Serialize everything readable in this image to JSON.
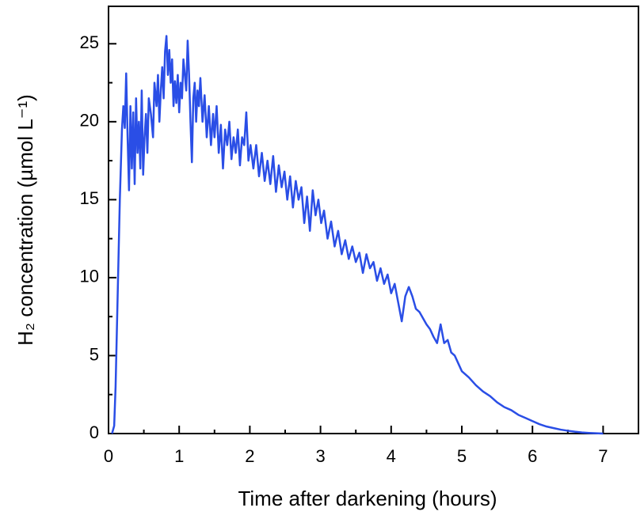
{
  "chart_data": {
    "type": "line",
    "xlabel": "Time after darkening (hours)",
    "ylabel": "H₂ concentration (µmol L⁻¹)",
    "xlim": [
      0,
      7.5
    ],
    "ylim": [
      0,
      27.4
    ],
    "xticks": [
      0,
      1,
      2,
      3,
      4,
      5,
      6,
      7
    ],
    "yticks": [
      0,
      5,
      10,
      15,
      20,
      25
    ],
    "x_minor_ticks": [
      0.5,
      1.5,
      2.5,
      3.5,
      4.5,
      5.5,
      6.5
    ],
    "y_minor_ticks": [
      2.5,
      7.5,
      12.5,
      17.5,
      22.5
    ],
    "grid": false,
    "x": [
      0.05,
      0.08,
      0.1,
      0.13,
      0.16,
      0.19,
      0.21,
      0.23,
      0.25,
      0.27,
      0.29,
      0.31,
      0.33,
      0.35,
      0.37,
      0.39,
      0.41,
      0.43,
      0.45,
      0.47,
      0.49,
      0.51,
      0.53,
      0.55,
      0.57,
      0.6,
      0.63,
      0.65,
      0.68,
      0.7,
      0.72,
      0.74,
      0.76,
      0.78,
      0.8,
      0.82,
      0.84,
      0.86,
      0.88,
      0.9,
      0.92,
      0.94,
      0.96,
      0.98,
      1.0,
      1.02,
      1.04,
      1.06,
      1.08,
      1.1,
      1.12,
      1.14,
      1.16,
      1.18,
      1.2,
      1.22,
      1.24,
      1.26,
      1.28,
      1.3,
      1.33,
      1.36,
      1.39,
      1.42,
      1.45,
      1.48,
      1.5,
      1.53,
      1.56,
      1.59,
      1.62,
      1.65,
      1.68,
      1.71,
      1.74,
      1.77,
      1.8,
      1.83,
      1.86,
      1.89,
      1.92,
      1.95,
      1.98,
      2.01,
      2.05,
      2.09,
      2.13,
      2.17,
      2.21,
      2.25,
      2.29,
      2.33,
      2.37,
      2.41,
      2.45,
      2.49,
      2.53,
      2.57,
      2.61,
      2.65,
      2.69,
      2.73,
      2.77,
      2.81,
      2.85,
      2.89,
      2.93,
      2.97,
      3.01,
      3.05,
      3.1,
      3.15,
      3.2,
      3.25,
      3.3,
      3.35,
      3.4,
      3.45,
      3.5,
      3.55,
      3.6,
      3.65,
      3.7,
      3.75,
      3.8,
      3.85,
      3.9,
      3.95,
      4.0,
      4.05,
      4.1,
      4.15,
      4.2,
      4.25,
      4.3,
      4.35,
      4.4,
      4.45,
      4.5,
      4.55,
      4.6,
      4.65,
      4.7,
      4.75,
      4.8,
      4.85,
      4.9,
      4.95,
      5.0,
      5.1,
      5.2,
      5.3,
      5.4,
      5.5,
      5.6,
      5.7,
      5.8,
      5.9,
      6.0,
      6.1,
      6.2,
      6.3,
      6.4,
      6.5,
      6.6,
      6.7,
      6.8,
      6.9,
      7.0
    ],
    "series": [
      {
        "color": "#2a4ee6",
        "values": [
          0,
          0.5,
          3,
          9,
          15,
          19.5,
          21,
          19.6,
          23.1,
          19,
          15.6,
          21,
          17,
          20.6,
          16,
          21.5,
          18,
          20,
          17,
          22,
          16.6,
          19,
          20.5,
          18,
          21.5,
          20.5,
          19,
          22.5,
          21,
          23,
          20,
          22,
          23.5,
          21.5,
          24.5,
          25.5,
          23,
          24.6,
          22.5,
          24,
          21,
          22.6,
          21.2,
          23,
          20.6,
          22.5,
          21.5,
          24,
          23,
          22,
          25.2,
          23,
          20,
          17.4,
          21.5,
          22.5,
          20,
          22,
          21,
          22.8,
          20,
          21.7,
          19,
          21,
          18.5,
          20.5,
          19,
          21,
          18,
          19.8,
          17,
          19.5,
          18.5,
          20,
          17.6,
          19,
          18,
          19.5,
          17.2,
          19,
          18.5,
          20.6,
          17.5,
          18.5,
          17,
          18.5,
          16.5,
          18,
          16.2,
          17.5,
          16,
          17.8,
          15.5,
          17.2,
          15.8,
          16.8,
          15,
          16.5,
          14.5,
          16.2,
          15,
          15.8,
          13.5,
          15.2,
          13,
          15.6,
          14,
          15,
          13.5,
          14.3,
          12.5,
          13.6,
          12,
          13,
          11.5,
          12.4,
          11.2,
          12,
          11,
          11.6,
          10.3,
          11.5,
          10.6,
          11,
          9.8,
          10.6,
          9.6,
          10.2,
          9,
          9.6,
          8.4,
          7.2,
          8.8,
          9.4,
          8.8,
          8,
          7.8,
          7.4,
          7,
          6.7,
          6.2,
          5.8,
          7,
          5.8,
          6,
          5.2,
          5,
          4.5,
          4,
          3.6,
          3.1,
          2.7,
          2.4,
          2,
          1.7,
          1.5,
          1.2,
          1,
          0.8,
          0.6,
          0.45,
          0.35,
          0.25,
          0.18,
          0.12,
          0.07,
          0.04,
          0.02,
          0
        ]
      }
    ]
  }
}
